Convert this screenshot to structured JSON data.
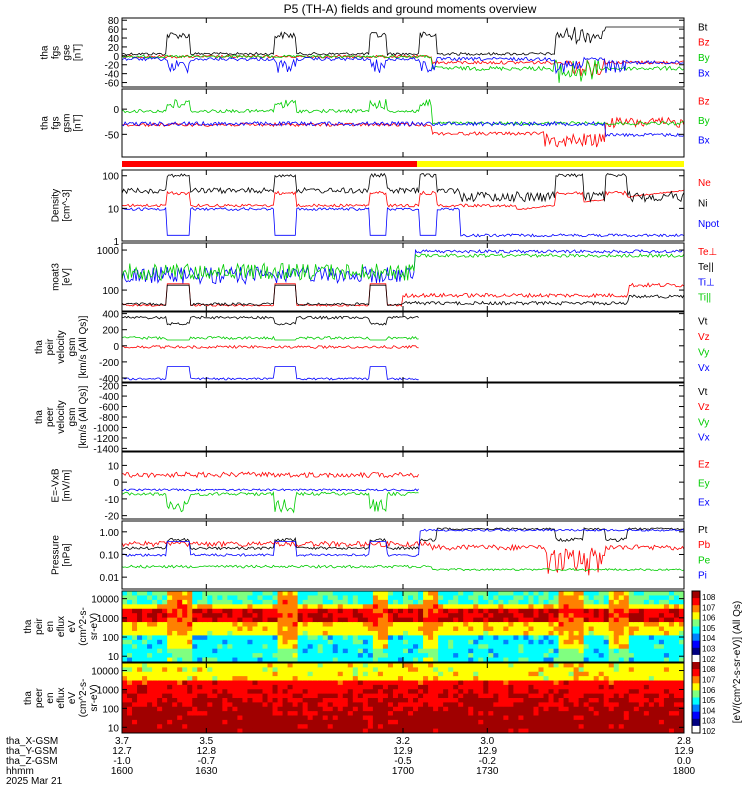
{
  "title": "P5 (TH-A) fields and ground moments overview",
  "chart_data": [
    {
      "id": "fgs_gse",
      "type": "line",
      "ylabel": [
        "tha",
        "fgs",
        "gse",
        "[nT]"
      ],
      "ylim": [
        -70,
        85
      ],
      "yticks": [
        80,
        60,
        40,
        20,
        0,
        -20,
        -40,
        -60
      ],
      "series": [
        {
          "name": "Bt",
          "color": "#000000"
        },
        {
          "name": "Bz",
          "color": "#ff0000"
        },
        {
          "name": "By",
          "color": "#00cc00"
        },
        {
          "name": "Bx",
          "color": "#0000ff"
        }
      ]
    },
    {
      "id": "fgs_gsm",
      "type": "line",
      "ylabel": [
        "tha",
        "fgs",
        "gsm",
        "[nT]"
      ],
      "ylim": [
        -95,
        40
      ],
      "yticks": [
        0,
        -50
      ],
      "series": [
        {
          "name": "Bz",
          "color": "#ff0000"
        },
        {
          "name": "By",
          "color": "#00cc00"
        },
        {
          "name": "Bx",
          "color": "#0000ff"
        }
      ]
    },
    {
      "id": "density",
      "type": "line",
      "ylabel": [
        "Density",
        "[cm^-3]"
      ],
      "yscale": "log",
      "ylim": [
        1,
        150
      ],
      "yticks": [
        "100",
        "10",
        "1"
      ],
      "series": [
        {
          "name": "Ne",
          "color": "#ff0000"
        },
        {
          "name": "Ni",
          "color": "#000000"
        },
        {
          "name": "Npot",
          "color": "#0000ff"
        }
      ]
    },
    {
      "id": "temperature",
      "type": "line",
      "ylabel": [
        "moat3",
        "[eV]"
      ],
      "yscale": "log",
      "ylim": [
        30,
        1500
      ],
      "yticks": [
        "1000",
        "100"
      ],
      "series": [
        {
          "name": "Te⊥",
          "color": "#ff0000"
        },
        {
          "name": "Te||",
          "color": "#000000"
        },
        {
          "name": "Ti⊥",
          "color": "#0000ff"
        },
        {
          "name": "Ti||",
          "color": "#00cc00"
        }
      ]
    },
    {
      "id": "peir_velocity",
      "type": "line",
      "ylabel": [
        "tha",
        "peir",
        "velocity",
        "gsm",
        "[km/s (All Qs)]"
      ],
      "ylim": [
        -450,
        420
      ],
      "yticks": [
        400,
        200,
        0,
        -200,
        -400
      ],
      "series": [
        {
          "name": "Vt",
          "color": "#000000"
        },
        {
          "name": "Vz",
          "color": "#ff0000"
        },
        {
          "name": "Vy",
          "color": "#00cc00"
        },
        {
          "name": "Vx",
          "color": "#0000ff"
        }
      ]
    },
    {
      "id": "peer_velocity",
      "type": "line",
      "ylabel": [
        "tha",
        "peer",
        "velocity",
        "gsm",
        "[km/s (All Qs)]"
      ],
      "ylim": [
        -1450,
        -150
      ],
      "yticks": [
        -200,
        -400,
        -600,
        -800,
        -1000,
        -1200,
        -1400
      ],
      "series": [
        {
          "name": "Vt",
          "color": "#000000"
        },
        {
          "name": "Vz",
          "color": "#ff0000"
        },
        {
          "name": "Vy",
          "color": "#00cc00"
        },
        {
          "name": "Vx",
          "color": "#0000ff"
        }
      ]
    },
    {
      "id": "efield",
      "type": "line",
      "ylabel": [
        "E=-VxB",
        "[mV/m]"
      ],
      "ylim": [
        -22,
        18
      ],
      "yticks": [
        10,
        0,
        -10,
        -20
      ],
      "series": [
        {
          "name": "Ez",
          "color": "#ff0000"
        },
        {
          "name": "Ey",
          "color": "#00cc00"
        },
        {
          "name": "Ex",
          "color": "#0000ff"
        }
      ]
    },
    {
      "id": "pressure",
      "type": "line",
      "ylabel": [
        "Pressure",
        "[nPa]"
      ],
      "yscale": "log",
      "ylim": [
        0.003,
        3
      ],
      "yticks": [
        "1.00",
        "0.10",
        "0.01"
      ],
      "series": [
        {
          "name": "Pt",
          "color": "#000000"
        },
        {
          "name": "Pb",
          "color": "#ff0000"
        },
        {
          "name": "Pe",
          "color": "#00cc00"
        },
        {
          "name": "Pi",
          "color": "#0000ff"
        }
      ]
    },
    {
      "id": "peir_spectrogram",
      "type": "heatmap",
      "ylabel": [
        "tha",
        "peir",
        "en",
        "eflux",
        "eV",
        "(cm^2-s-",
        "sr-eV)"
      ],
      "yscale": "log",
      "ylim": [
        5,
        25000
      ],
      "yticks": [
        "10000",
        "1000",
        "100",
        "10"
      ]
    },
    {
      "id": "peer_spectrogram",
      "type": "heatmap",
      "ylabel": [
        "tha",
        "peer",
        "en",
        "eflux",
        "eV",
        "(cm^2-s-",
        "sr-eV)"
      ],
      "yscale": "log",
      "ylim": [
        5,
        25000
      ],
      "yticks": [
        "10000",
        "1000",
        "100",
        "10"
      ]
    }
  ],
  "mode_bar": {
    "segments": [
      {
        "color": "#ff0000",
        "from": 1600,
        "to": 1705
      },
      {
        "color": "#ffff00",
        "from": 1705,
        "to": 1800
      }
    ]
  },
  "colorbar": {
    "label": "[eV/(cm^2-s-sr-eV)] (All Qs)",
    "ticks_top": [
      "10^8",
      "10^7",
      "10^6",
      "10^5",
      "10^4",
      "10^3",
      "10^2"
    ],
    "ticks_bottom": [
      "10^8",
      "10^7",
      "10^6",
      "10^5",
      "10^4",
      "10^3",
      "10^2"
    ]
  },
  "time_axis": {
    "range": [
      1600,
      1800
    ],
    "row_labels": [
      "tha_X-GSM",
      "tha_Y-GSM",
      "tha_Z-GSM",
      "hhmm",
      "2025 Mar 21"
    ],
    "ticks": [
      {
        "t": 1600,
        "x": "3.7",
        "y": "12.7",
        "z": "-1.0",
        "hhmm": "1600"
      },
      {
        "t": 1630,
        "x": "3.5",
        "y": "12.8",
        "z": "-0.7",
        "hhmm": "1630"
      },
      {
        "t": 1700,
        "x": "3.2",
        "y": "12.9",
        "z": "-0.5",
        "hhmm": "1700"
      },
      {
        "t": 1730,
        "x": "3.0",
        "y": "12.9",
        "z": "-0.2",
        "hhmm": "1730"
      },
      {
        "t": 1800,
        "x": "2.8",
        "y": "12.9",
        "z": "0.0",
        "hhmm": "1800"
      }
    ]
  }
}
